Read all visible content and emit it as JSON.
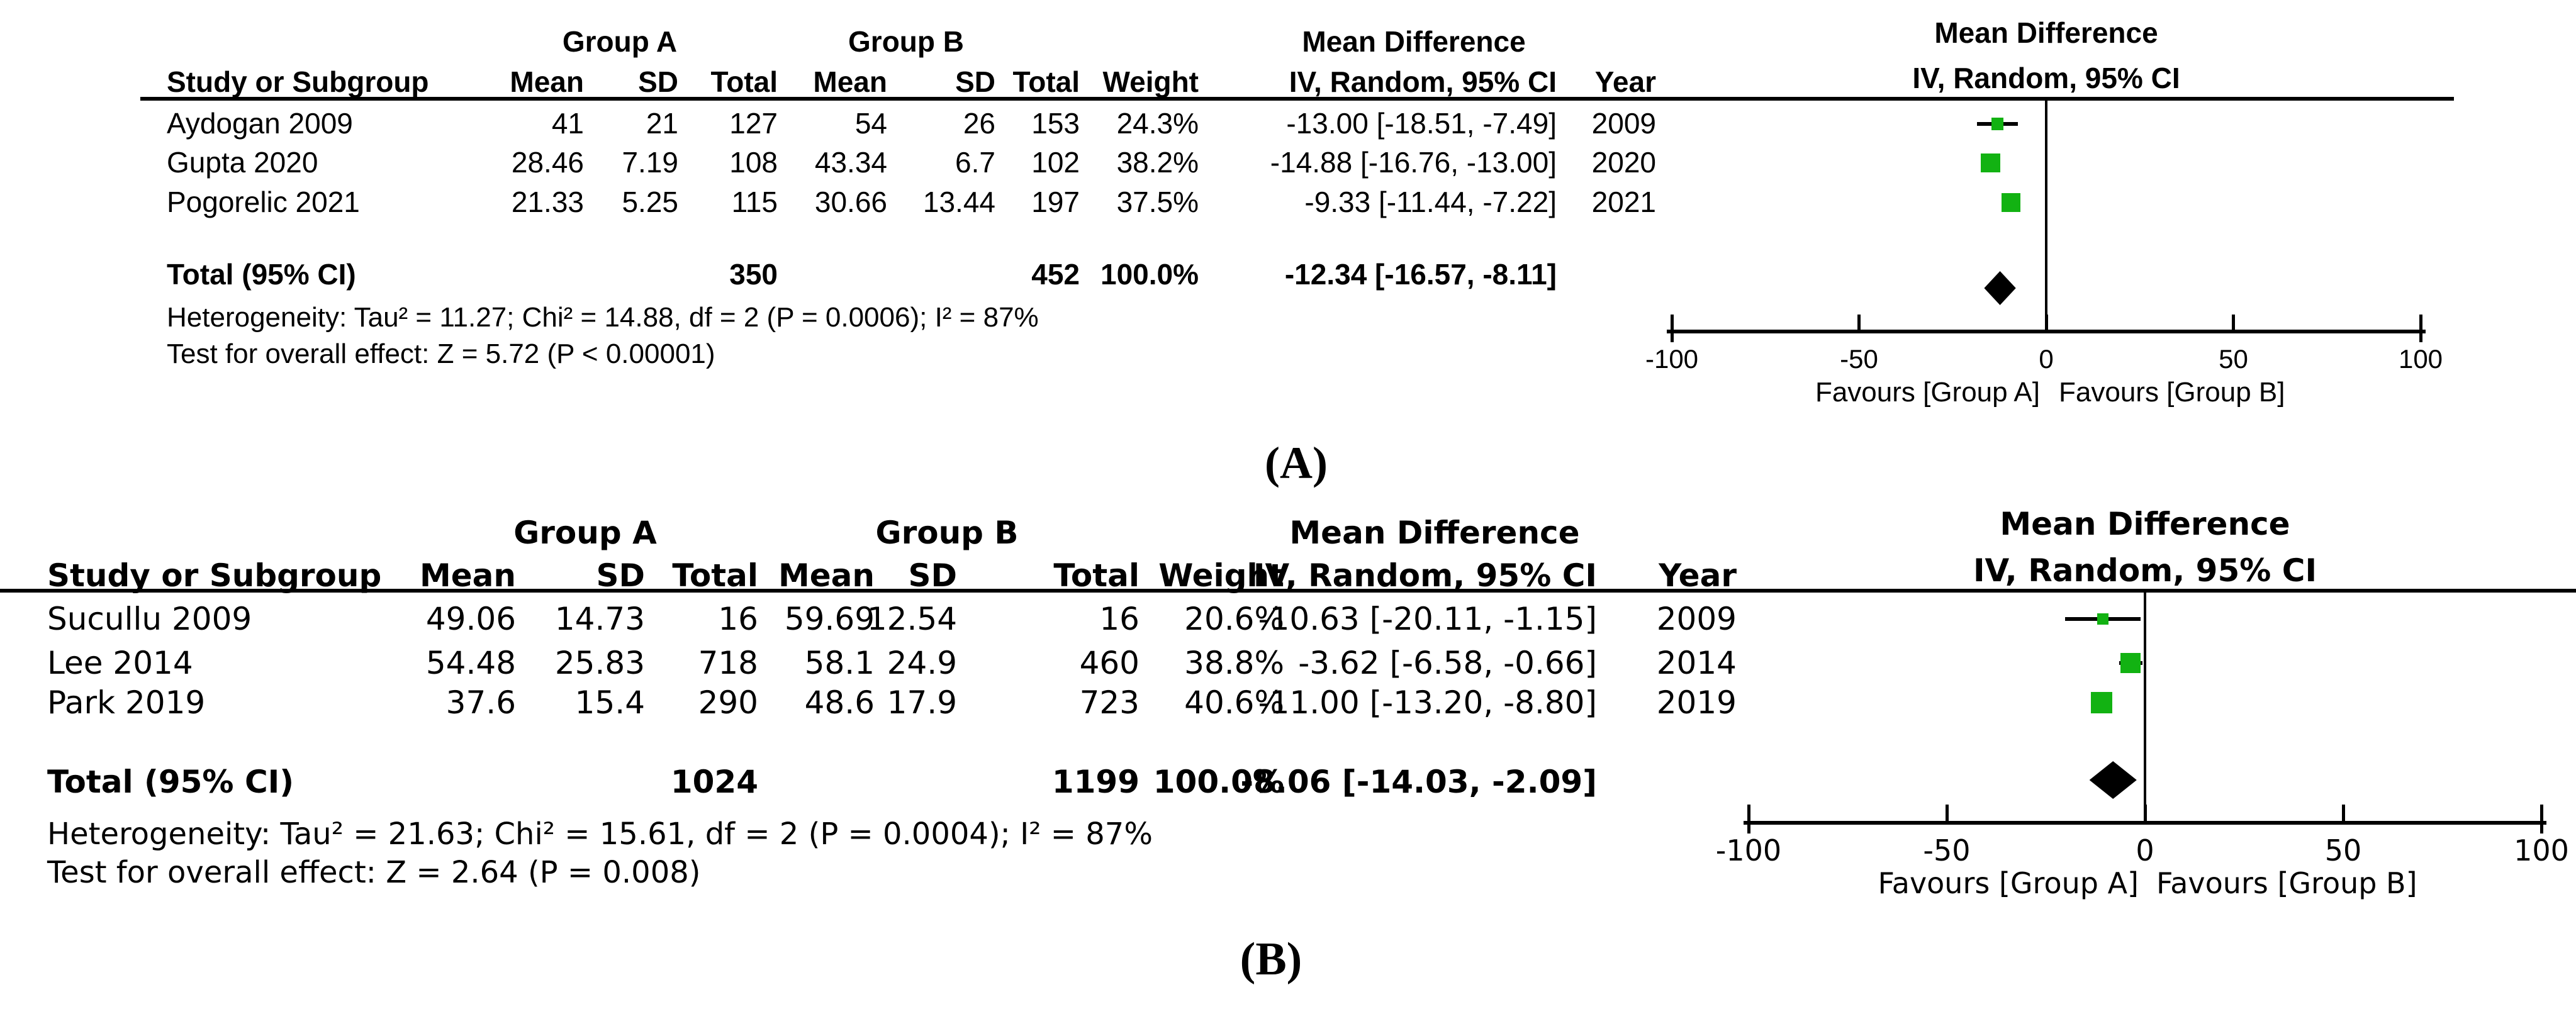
{
  "colors": {
    "square_green": "#12b212",
    "diamond_black": "#000000",
    "line_black": "#000000"
  },
  "panels": [
    {
      "panel_label": "(A)",
      "headers": {
        "group_a": "Group A",
        "group_b": "Group B",
        "mean_difference": "Mean Difference",
        "method": "IV, Random, 95% CI",
        "study": "Study or Subgroup",
        "mean": "Mean",
        "sd": "SD",
        "total": "Total",
        "weight": "Weight",
        "year": "Year"
      },
      "studies": [
        {
          "name": "Aydogan 2009",
          "cells": [
            "41",
            "21",
            "127",
            "54",
            "26",
            "153",
            "24.3%",
            "-13.00 [-18.51, -7.49]",
            "2009"
          ]
        },
        {
          "name": "Gupta 2020",
          "cells": [
            "28.46",
            "7.19",
            "108",
            "43.34",
            "6.7",
            "102",
            "38.2%",
            "-14.88 [-16.76, -13.00]",
            "2020"
          ]
        },
        {
          "name": "Pogorelic 2021",
          "cells": [
            "21.33",
            "5.25",
            "115",
            "30.66",
            "13.44",
            "197",
            "37.5%",
            "-9.33 [-11.44, -7.22]",
            "2021"
          ]
        }
      ],
      "total_row": {
        "label": "Total (95% CI)",
        "total_a": "350",
        "total_b": "452",
        "weight": "100.0%",
        "ci": "-12.34 [-16.57, -8.11]"
      },
      "heterogeneity": "Heterogeneity: Tau² = 11.27; Chi² = 14.88, df = 2 (P = 0.0006); I² = 87%",
      "overall_effect": "Test for overall effect: Z = 5.72 (P < 0.00001)",
      "axis": {
        "tick_labels": [
          "-100",
          "-50",
          "0",
          "50",
          "100"
        ],
        "favours_left": "Favours [Group A]",
        "favours_right": "Favours [Group B]"
      }
    },
    {
      "panel_label": "(B)",
      "headers": {
        "group_a": "Group A",
        "group_b": "Group B",
        "mean_difference": "Mean Difference",
        "method": "IV, Random, 95% CI",
        "study": "Study or Subgroup",
        "mean": "Mean",
        "sd": "SD",
        "total": "Total",
        "weight": "Weight",
        "year": "Year"
      },
      "studies": [
        {
          "name": "Sucullu 2009",
          "cells": [
            "49.06",
            "14.73",
            "16",
            "59.69",
            "12.54",
            "16",
            "20.6%",
            "-10.63 [-20.11, -1.15]",
            "2009"
          ]
        },
        {
          "name": "Lee 2014",
          "cells": [
            "54.48",
            "25.83",
            "718",
            "58.1",
            "24.9",
            "460",
            "38.8%",
            "-3.62 [-6.58, -0.66]",
            "2014"
          ]
        },
        {
          "name": "Park 2019",
          "cells": [
            "37.6",
            "15.4",
            "290",
            "48.6",
            "17.9",
            "723",
            "40.6%",
            "-11.00 [-13.20, -8.80]",
            "2019"
          ]
        }
      ],
      "total_row": {
        "label": "Total (95% CI)",
        "total_a": "1024",
        "total_b": "1199",
        "weight": "100.0%",
        "ci": "-8.06 [-14.03, -2.09]"
      },
      "heterogeneity": "Heterogeneity: Tau² = 21.63; Chi² = 15.61, df = 2 (P = 0.0004); I² = 87%",
      "overall_effect": "Test for overall effect: Z = 2.64 (P = 0.008)",
      "axis": {
        "tick_labels": [
          "-100",
          "-50",
          "0",
          "50",
          "100"
        ],
        "favours_left": "Favours [Group A]",
        "favours_right": "Favours [Group B]"
      }
    }
  ],
  "chart_data": [
    {
      "type": "scatter",
      "subtype": "forest-plot",
      "panel": "A",
      "title": "Mean Difference",
      "method": "IV, Random, 95% CI",
      "x_range": [
        -100,
        100
      ],
      "x_ticks": [
        -100,
        -50,
        0,
        50,
        100
      ],
      "favours_left": "Favours [Group A]",
      "favours_right": "Favours [Group B]",
      "studies": [
        {
          "label": "Aydogan 2009",
          "md": -13.0,
          "ci": [
            -18.51,
            -7.49
          ],
          "weight_pct": 24.3,
          "year": 2009
        },
        {
          "label": "Gupta 2020",
          "md": -14.88,
          "ci": [
            -16.76,
            -13.0
          ],
          "weight_pct": 38.2,
          "year": 2020
        },
        {
          "label": "Pogorelic 2021",
          "md": -9.33,
          "ci": [
            -11.44,
            -7.22
          ],
          "weight_pct": 37.5,
          "year": 2021
        }
      ],
      "total": {
        "label": "Total (95% CI)",
        "md": -12.34,
        "ci": [
          -16.57,
          -8.11
        ],
        "weight_pct": 100.0
      }
    },
    {
      "type": "scatter",
      "subtype": "forest-plot",
      "panel": "B",
      "title": "Mean Difference",
      "method": "IV, Random, 95% CI",
      "x_range": [
        -100,
        100
      ],
      "x_ticks": [
        -100,
        -50,
        0,
        50,
        100
      ],
      "favours_left": "Favours [Group A]",
      "favours_right": "Favours [Group B]",
      "studies": [
        {
          "label": "Sucullu 2009",
          "md": -10.63,
          "ci": [
            -20.11,
            -1.15
          ],
          "weight_pct": 20.6,
          "year": 2009
        },
        {
          "label": "Lee 2014",
          "md": -3.62,
          "ci": [
            -6.58,
            -0.66
          ],
          "weight_pct": 38.8,
          "year": 2014
        },
        {
          "label": "Park 2019",
          "md": -11.0,
          "ci": [
            -13.2,
            -8.8
          ],
          "weight_pct": 40.6,
          "year": 2019
        }
      ],
      "total": {
        "label": "Total (95% CI)",
        "md": -8.06,
        "ci": [
          -14.03,
          -2.09
        ],
        "weight_pct": 100.0
      }
    }
  ]
}
